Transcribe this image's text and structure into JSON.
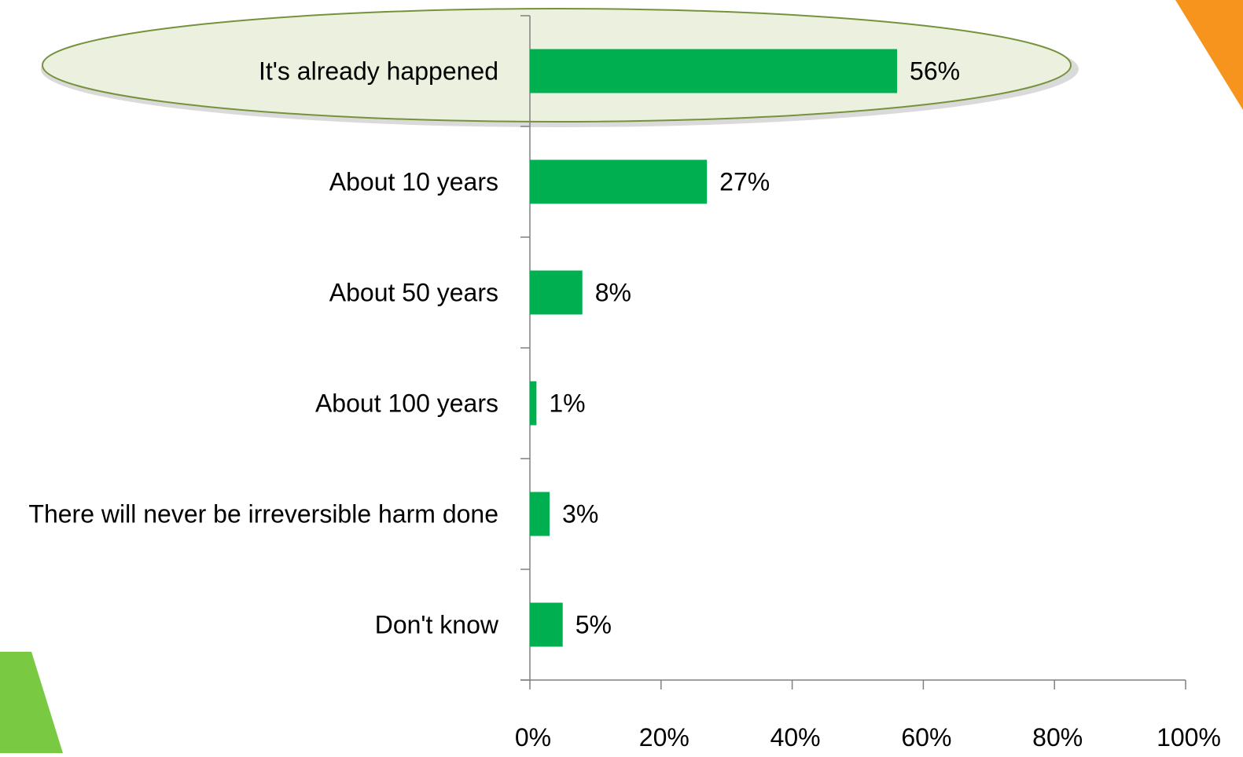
{
  "chart_data": {
    "type": "bar",
    "orientation": "horizontal",
    "categories": [
      "It's already happened",
      "About 10 years",
      "About 50 years",
      "About 100 years",
      "There will never be irreversible harm done",
      "Don't know"
    ],
    "values": [
      56,
      27,
      8,
      1,
      3,
      5
    ],
    "data_labels": [
      "56%",
      "27%",
      "8%",
      "1%",
      "3%",
      "5%"
    ],
    "x_ticks": [
      "0%",
      "20%",
      "40%",
      "60%",
      "80%",
      "100%"
    ],
    "xlim": [
      0,
      100
    ],
    "highlighted_category": "It's already happened",
    "grid": false,
    "title": "",
    "xlabel": "",
    "ylabel": ""
  },
  "colors": {
    "bar": "#00b050",
    "axis": "#808080",
    "text": "#000000",
    "highlight_fill": "#ebf1de",
    "highlight_stroke": "#76923c",
    "decor_green": "#7ac943",
    "decor_orange": "#f7941d"
  }
}
